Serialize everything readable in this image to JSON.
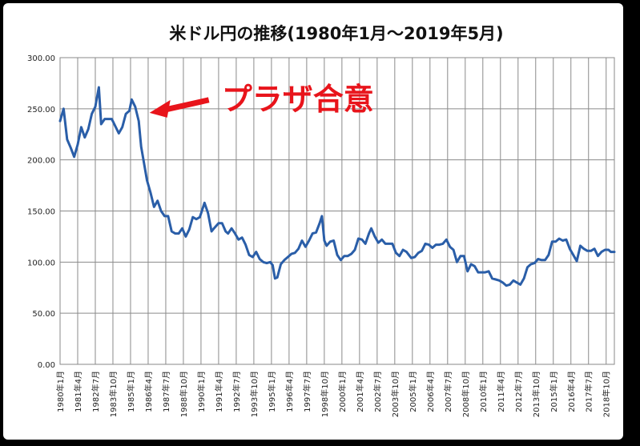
{
  "chart_data": {
    "type": "line",
    "title": "米ドル円の推移(1980年1月～2019年5月)",
    "xlabel": "",
    "ylabel": "",
    "ylim": [
      0,
      300
    ],
    "yticks": [
      0,
      50,
      100,
      150,
      200,
      250,
      300
    ],
    "ytick_labels": [
      "0.00",
      "50.00",
      "100.00",
      "150.00",
      "200.00",
      "250.00",
      "300.00"
    ],
    "grid": true,
    "x_start": "1980-01",
    "x_end": "2019-05",
    "xtick_labels": [
      "1980年1月",
      "1981年4月",
      "1982年7月",
      "1983年10月",
      "1985年1月",
      "1986年4月",
      "1987年7月",
      "1988年10月",
      "1990年1月",
      "1991年4月",
      "1992年7月",
      "1993年10月",
      "1995年1月",
      "1996年4月",
      "1997年7月",
      "1998年10月",
      "2000年1月",
      "2001年4月",
      "2002年7月",
      "2003年10月",
      "2005年1月",
      "2006年4月",
      "2007年7月",
      "2008年10月",
      "2010年1月",
      "2011年4月",
      "2012年7月",
      "2013年10月",
      "2015年1月",
      "2016年4月",
      "2017年7月",
      "2018年10月"
    ],
    "series": [
      {
        "color": "#2a5ea8",
        "points": [
          [
            "1980-01",
            238
          ],
          [
            "1980-04",
            250
          ],
          [
            "1980-07",
            220
          ],
          [
            "1980-10",
            212
          ],
          [
            "1981-01",
            203
          ],
          [
            "1981-04",
            215
          ],
          [
            "1981-07",
            232
          ],
          [
            "1981-10",
            222
          ],
          [
            "1982-01",
            230
          ],
          [
            "1982-04",
            245
          ],
          [
            "1982-07",
            252
          ],
          [
            "1982-10",
            271
          ],
          [
            "1982-12",
            235
          ],
          [
            "1983-03",
            240
          ],
          [
            "1983-06",
            240
          ],
          [
            "1983-09",
            240
          ],
          [
            "1983-12",
            233
          ],
          [
            "1984-03",
            226
          ],
          [
            "1984-06",
            232
          ],
          [
            "1984-09",
            245
          ],
          [
            "1984-12",
            248
          ],
          [
            "1985-02",
            259
          ],
          [
            "1985-05",
            252
          ],
          [
            "1985-08",
            238
          ],
          [
            "1985-10",
            213
          ],
          [
            "1985-12",
            200
          ],
          [
            "1986-03",
            180
          ],
          [
            "1986-06",
            168
          ],
          [
            "1986-09",
            154
          ],
          [
            "1986-12",
            160
          ],
          [
            "1987-03",
            150
          ],
          [
            "1987-06",
            145
          ],
          [
            "1987-09",
            145
          ],
          [
            "1987-12",
            130
          ],
          [
            "1988-03",
            128
          ],
          [
            "1988-06",
            128
          ],
          [
            "1988-09",
            133
          ],
          [
            "1988-12",
            125
          ],
          [
            "1989-03",
            132
          ],
          [
            "1989-06",
            144
          ],
          [
            "1989-09",
            142
          ],
          [
            "1989-12",
            144
          ],
          [
            "1990-04",
            158
          ],
          [
            "1990-07",
            148
          ],
          [
            "1990-10",
            130
          ],
          [
            "1990-12",
            133
          ],
          [
            "1991-04",
            138
          ],
          [
            "1991-07",
            138
          ],
          [
            "1991-10",
            130
          ],
          [
            "1991-12",
            128
          ],
          [
            "1992-03",
            133
          ],
          [
            "1992-06",
            128
          ],
          [
            "1992-09",
            122
          ],
          [
            "1992-12",
            124
          ],
          [
            "1993-03",
            117
          ],
          [
            "1993-06",
            107
          ],
          [
            "1993-09",
            105
          ],
          [
            "1993-12",
            110
          ],
          [
            "1994-03",
            103
          ],
          [
            "1994-06",
            100
          ],
          [
            "1994-09",
            99
          ],
          [
            "1994-12",
            100
          ],
          [
            "1995-02",
            97
          ],
          [
            "1995-04",
            84
          ],
          [
            "1995-06",
            85
          ],
          [
            "1995-09",
            98
          ],
          [
            "1995-12",
            102
          ],
          [
            "1996-03",
            105
          ],
          [
            "1996-06",
            108
          ],
          [
            "1996-09",
            109
          ],
          [
            "1996-12",
            113
          ],
          [
            "1997-03",
            121
          ],
          [
            "1997-06",
            115
          ],
          [
            "1997-09",
            121
          ],
          [
            "1997-12",
            128
          ],
          [
            "1998-03",
            129
          ],
          [
            "1998-06",
            138
          ],
          [
            "1998-08",
            145
          ],
          [
            "1998-10",
            121
          ],
          [
            "1998-12",
            116
          ],
          [
            "1999-03",
            120
          ],
          [
            "1999-06",
            121
          ],
          [
            "1999-09",
            107
          ],
          [
            "1999-12",
            102
          ],
          [
            "2000-03",
            106
          ],
          [
            "2000-06",
            106
          ],
          [
            "2000-09",
            108
          ],
          [
            "2000-12",
            112
          ],
          [
            "2001-03",
            123
          ],
          [
            "2001-06",
            122
          ],
          [
            "2001-09",
            118
          ],
          [
            "2001-12",
            128
          ],
          [
            "2002-02",
            133
          ],
          [
            "2002-05",
            125
          ],
          [
            "2002-08",
            119
          ],
          [
            "2002-11",
            122
          ],
          [
            "2003-02",
            118
          ],
          [
            "2003-05",
            118
          ],
          [
            "2003-08",
            118
          ],
          [
            "2003-11",
            109
          ],
          [
            "2004-02",
            106
          ],
          [
            "2004-05",
            112
          ],
          [
            "2004-08",
            110
          ],
          [
            "2004-12",
            104
          ],
          [
            "2005-03",
            105
          ],
          [
            "2005-06",
            109
          ],
          [
            "2005-09",
            111
          ],
          [
            "2005-12",
            118
          ],
          [
            "2006-03",
            117
          ],
          [
            "2006-06",
            114
          ],
          [
            "2006-09",
            117
          ],
          [
            "2006-12",
            117
          ],
          [
            "2007-03",
            118
          ],
          [
            "2007-06",
            122
          ],
          [
            "2007-09",
            115
          ],
          [
            "2007-12",
            112
          ],
          [
            "2008-03",
            100
          ],
          [
            "2008-06",
            106
          ],
          [
            "2008-09",
            106
          ],
          [
            "2008-12",
            91
          ],
          [
            "2009-03",
            98
          ],
          [
            "2009-06",
            96
          ],
          [
            "2009-09",
            90
          ],
          [
            "2009-12",
            90
          ],
          [
            "2010-03",
            90
          ],
          [
            "2010-06",
            91
          ],
          [
            "2010-09",
            84
          ],
          [
            "2010-12",
            83
          ],
          [
            "2011-03",
            82
          ],
          [
            "2011-06",
            80
          ],
          [
            "2011-09",
            77
          ],
          [
            "2011-12",
            78
          ],
          [
            "2012-03",
            82
          ],
          [
            "2012-06",
            80
          ],
          [
            "2012-09",
            78
          ],
          [
            "2012-12",
            84
          ],
          [
            "2013-03",
            95
          ],
          [
            "2013-06",
            98
          ],
          [
            "2013-09",
            99
          ],
          [
            "2013-12",
            103
          ],
          [
            "2014-03",
            102
          ],
          [
            "2014-06",
            102
          ],
          [
            "2014-09",
            107
          ],
          [
            "2014-12",
            120
          ],
          [
            "2015-03",
            120
          ],
          [
            "2015-06",
            123
          ],
          [
            "2015-09",
            121
          ],
          [
            "2015-12",
            122
          ],
          [
            "2016-03",
            113
          ],
          [
            "2016-06",
            107
          ],
          [
            "2016-09",
            101
          ],
          [
            "2016-12",
            116
          ],
          [
            "2017-03",
            113
          ],
          [
            "2017-06",
            111
          ],
          [
            "2017-09",
            111
          ],
          [
            "2017-12",
            113
          ],
          [
            "2018-03",
            106
          ],
          [
            "2018-06",
            110
          ],
          [
            "2018-09",
            112
          ],
          [
            "2018-12",
            112
          ],
          [
            "2019-02",
            110
          ],
          [
            "2019-05",
            110
          ]
        ]
      }
    ],
    "annotation": {
      "text": "プラザ合意",
      "color": "#e8141b",
      "arrow_target": [
        "1985-09",
        250
      ]
    }
  }
}
